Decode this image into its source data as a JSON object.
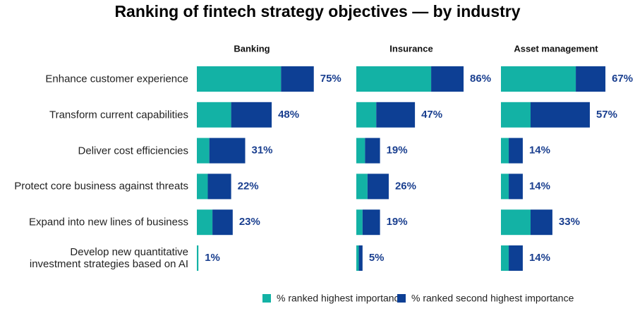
{
  "chart_data": {
    "type": "stacked-bar",
    "orientation": "horizontal",
    "title": "Ranking of fintech strategy objectives — by industry",
    "categories": [
      "Enhance customer experience",
      "Transform current capabilities",
      "Deliver cost efficiencies",
      "Protect core business against threats",
      "Expand into new lines of business",
      "Develop new quantitative\ninvestment strategies based on AI"
    ],
    "series": [
      {
        "name": "% ranked highest importance",
        "color": "#13b2a5"
      },
      {
        "name": "% ranked second highest importance",
        "color": "#0d3f94"
      }
    ],
    "panels": [
      {
        "title": "Banking",
        "xlim": [
          0,
          100
        ],
        "values": [
          [
            54,
            22,
            8,
            7,
            10,
            1
          ],
          [
            21,
            26,
            23,
            15,
            13,
            0
          ]
        ],
        "totals": [
          75,
          48,
          31,
          22,
          23,
          1
        ],
        "total_labels": [
          "75%",
          "48%",
          "31%",
          "22%",
          "23%",
          "1%"
        ]
      },
      {
        "title": "Insurance",
        "xlim": [
          0,
          125
        ],
        "values": [
          [
            60,
            16,
            7,
            9,
            5,
            2
          ],
          [
            26,
            31,
            12,
            17,
            14,
            3
          ]
        ],
        "totals": [
          86,
          47,
          19,
          26,
          19,
          5
        ],
        "total_labels": [
          "86%",
          "47%",
          "19%",
          "26%",
          "19%",
          "5%"
        ]
      },
      {
        "title": "Asset management",
        "xlim": [
          0,
          100
        ],
        "values": [
          [
            48,
            19,
            5,
            5,
            19,
            5
          ],
          [
            19,
            38,
            9,
            9,
            14,
            9
          ]
        ],
        "totals": [
          67,
          57,
          14,
          14,
          33,
          14
        ],
        "total_labels": [
          "67%",
          "57%",
          "14%",
          "14%",
          "33%",
          "14%"
        ]
      }
    ]
  }
}
